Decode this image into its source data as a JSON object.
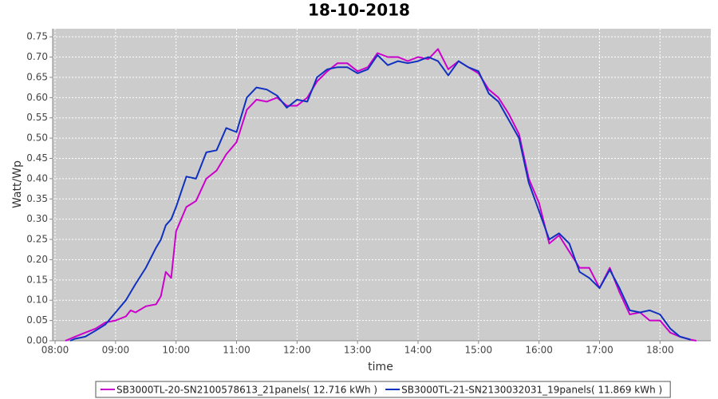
{
  "chart_data": {
    "type": "line",
    "title": "18-10-2018",
    "x_label": "time",
    "y_label": "Watt/Wp",
    "x": [
      8.17,
      8.25,
      8.33,
      8.5,
      8.67,
      8.83,
      9.0,
      9.17,
      9.25,
      9.33,
      9.5,
      9.67,
      9.75,
      9.83,
      9.92,
      10.0,
      10.17,
      10.33,
      10.5,
      10.67,
      10.83,
      11.0,
      11.17,
      11.33,
      11.5,
      11.67,
      11.83,
      12.0,
      12.17,
      12.33,
      12.5,
      12.67,
      12.83,
      13.0,
      13.17,
      13.33,
      13.5,
      13.67,
      13.83,
      14.0,
      14.17,
      14.33,
      14.5,
      14.67,
      14.83,
      15.0,
      15.17,
      15.33,
      15.5,
      15.67,
      15.83,
      16.0,
      16.17,
      16.33,
      16.5,
      16.67,
      16.83,
      17.0,
      17.17,
      17.33,
      17.5,
      17.67,
      17.83,
      18.0,
      18.17,
      18.33,
      18.5,
      18.6
    ],
    "series": [
      {
        "name": "SB3000TL-20-SN2100578613_21panels( 12.716 kWh )",
        "color": "#cc00cc",
        "values": [
          0,
          0.005,
          0.01,
          0.02,
          0.03,
          0.045,
          0.05,
          0.06,
          0.075,
          0.07,
          0.085,
          0.09,
          0.11,
          0.17,
          0.155,
          0.27,
          0.33,
          0.345,
          0.4,
          0.42,
          0.46,
          0.49,
          0.57,
          0.595,
          0.59,
          0.6,
          0.58,
          0.58,
          0.6,
          0.64,
          0.665,
          0.685,
          0.685,
          0.665,
          0.675,
          0.71,
          0.7,
          0.7,
          0.69,
          0.7,
          0.695,
          0.72,
          0.67,
          0.69,
          0.675,
          0.66,
          0.62,
          0.6,
          0.56,
          0.51,
          0.4,
          0.34,
          0.24,
          0.26,
          0.22,
          0.18,
          0.18,
          0.13,
          0.18,
          0.12,
          0.065,
          0.07,
          0.05,
          0.05,
          0.02,
          0.01,
          0.003,
          0
        ]
      },
      {
        "name": "SB3000TL-21-SN2130032031_19panels( 11.869 kWh )",
        "color": "#1030c0",
        "values": [
          null,
          0,
          0.005,
          0.01,
          0.025,
          0.04,
          0.07,
          0.1,
          0.12,
          0.14,
          0.18,
          0.23,
          0.25,
          0.285,
          0.3,
          0.33,
          0.405,
          0.4,
          0.465,
          0.47,
          0.525,
          0.515,
          0.6,
          0.625,
          0.62,
          0.605,
          0.575,
          0.595,
          0.59,
          0.65,
          0.67,
          0.675,
          0.675,
          0.66,
          0.67,
          0.705,
          0.68,
          0.69,
          0.685,
          0.69,
          0.7,
          0.69,
          0.655,
          0.69,
          0.675,
          0.665,
          0.61,
          0.59,
          0.545,
          0.5,
          0.39,
          0.32,
          0.25,
          0.265,
          0.24,
          0.17,
          0.155,
          0.13,
          0.175,
          0.13,
          0.075,
          0.07,
          0.075,
          0.065,
          0.03,
          0.01,
          0.003,
          null
        ]
      }
    ],
    "xlim": [
      7.96,
      18.84
    ],
    "xticks": [
      {
        "value": 8,
        "label": "08:00"
      },
      {
        "value": 9,
        "label": "09:00"
      },
      {
        "value": 10,
        "label": "10:00"
      },
      {
        "value": 11,
        "label": "11:00"
      },
      {
        "value": 12,
        "label": "12:00"
      },
      {
        "value": 13,
        "label": "13:00"
      },
      {
        "value": 14,
        "label": "14:00"
      },
      {
        "value": 15,
        "label": "15:00"
      },
      {
        "value": 16,
        "label": "16:00"
      },
      {
        "value": 17,
        "label": "17:00"
      },
      {
        "value": 18,
        "label": "18:00"
      }
    ],
    "ylim": [
      0,
      0.77
    ],
    "yticks": [
      {
        "value": 0,
        "label": "0.00"
      },
      {
        "value": 0.05,
        "label": "0.05"
      },
      {
        "value": 0.1,
        "label": "0.10"
      },
      {
        "value": 0.15,
        "label": "0.15"
      },
      {
        "value": 0.2,
        "label": "0.20"
      },
      {
        "value": 0.25,
        "label": "0.25"
      },
      {
        "value": 0.3,
        "label": "0.30"
      },
      {
        "value": 0.35,
        "label": "0.35"
      },
      {
        "value": 0.4,
        "label": "0.40"
      },
      {
        "value": 0.45,
        "label": "0.45"
      },
      {
        "value": 0.5,
        "label": "0.50"
      },
      {
        "value": 0.55,
        "label": "0.55"
      },
      {
        "value": 0.6,
        "label": "0.60"
      },
      {
        "value": 0.65,
        "label": "0.65"
      },
      {
        "value": 0.7,
        "label": "0.70"
      },
      {
        "value": 0.75,
        "label": "0.75"
      }
    ],
    "grid": true,
    "legend": "bottom"
  }
}
